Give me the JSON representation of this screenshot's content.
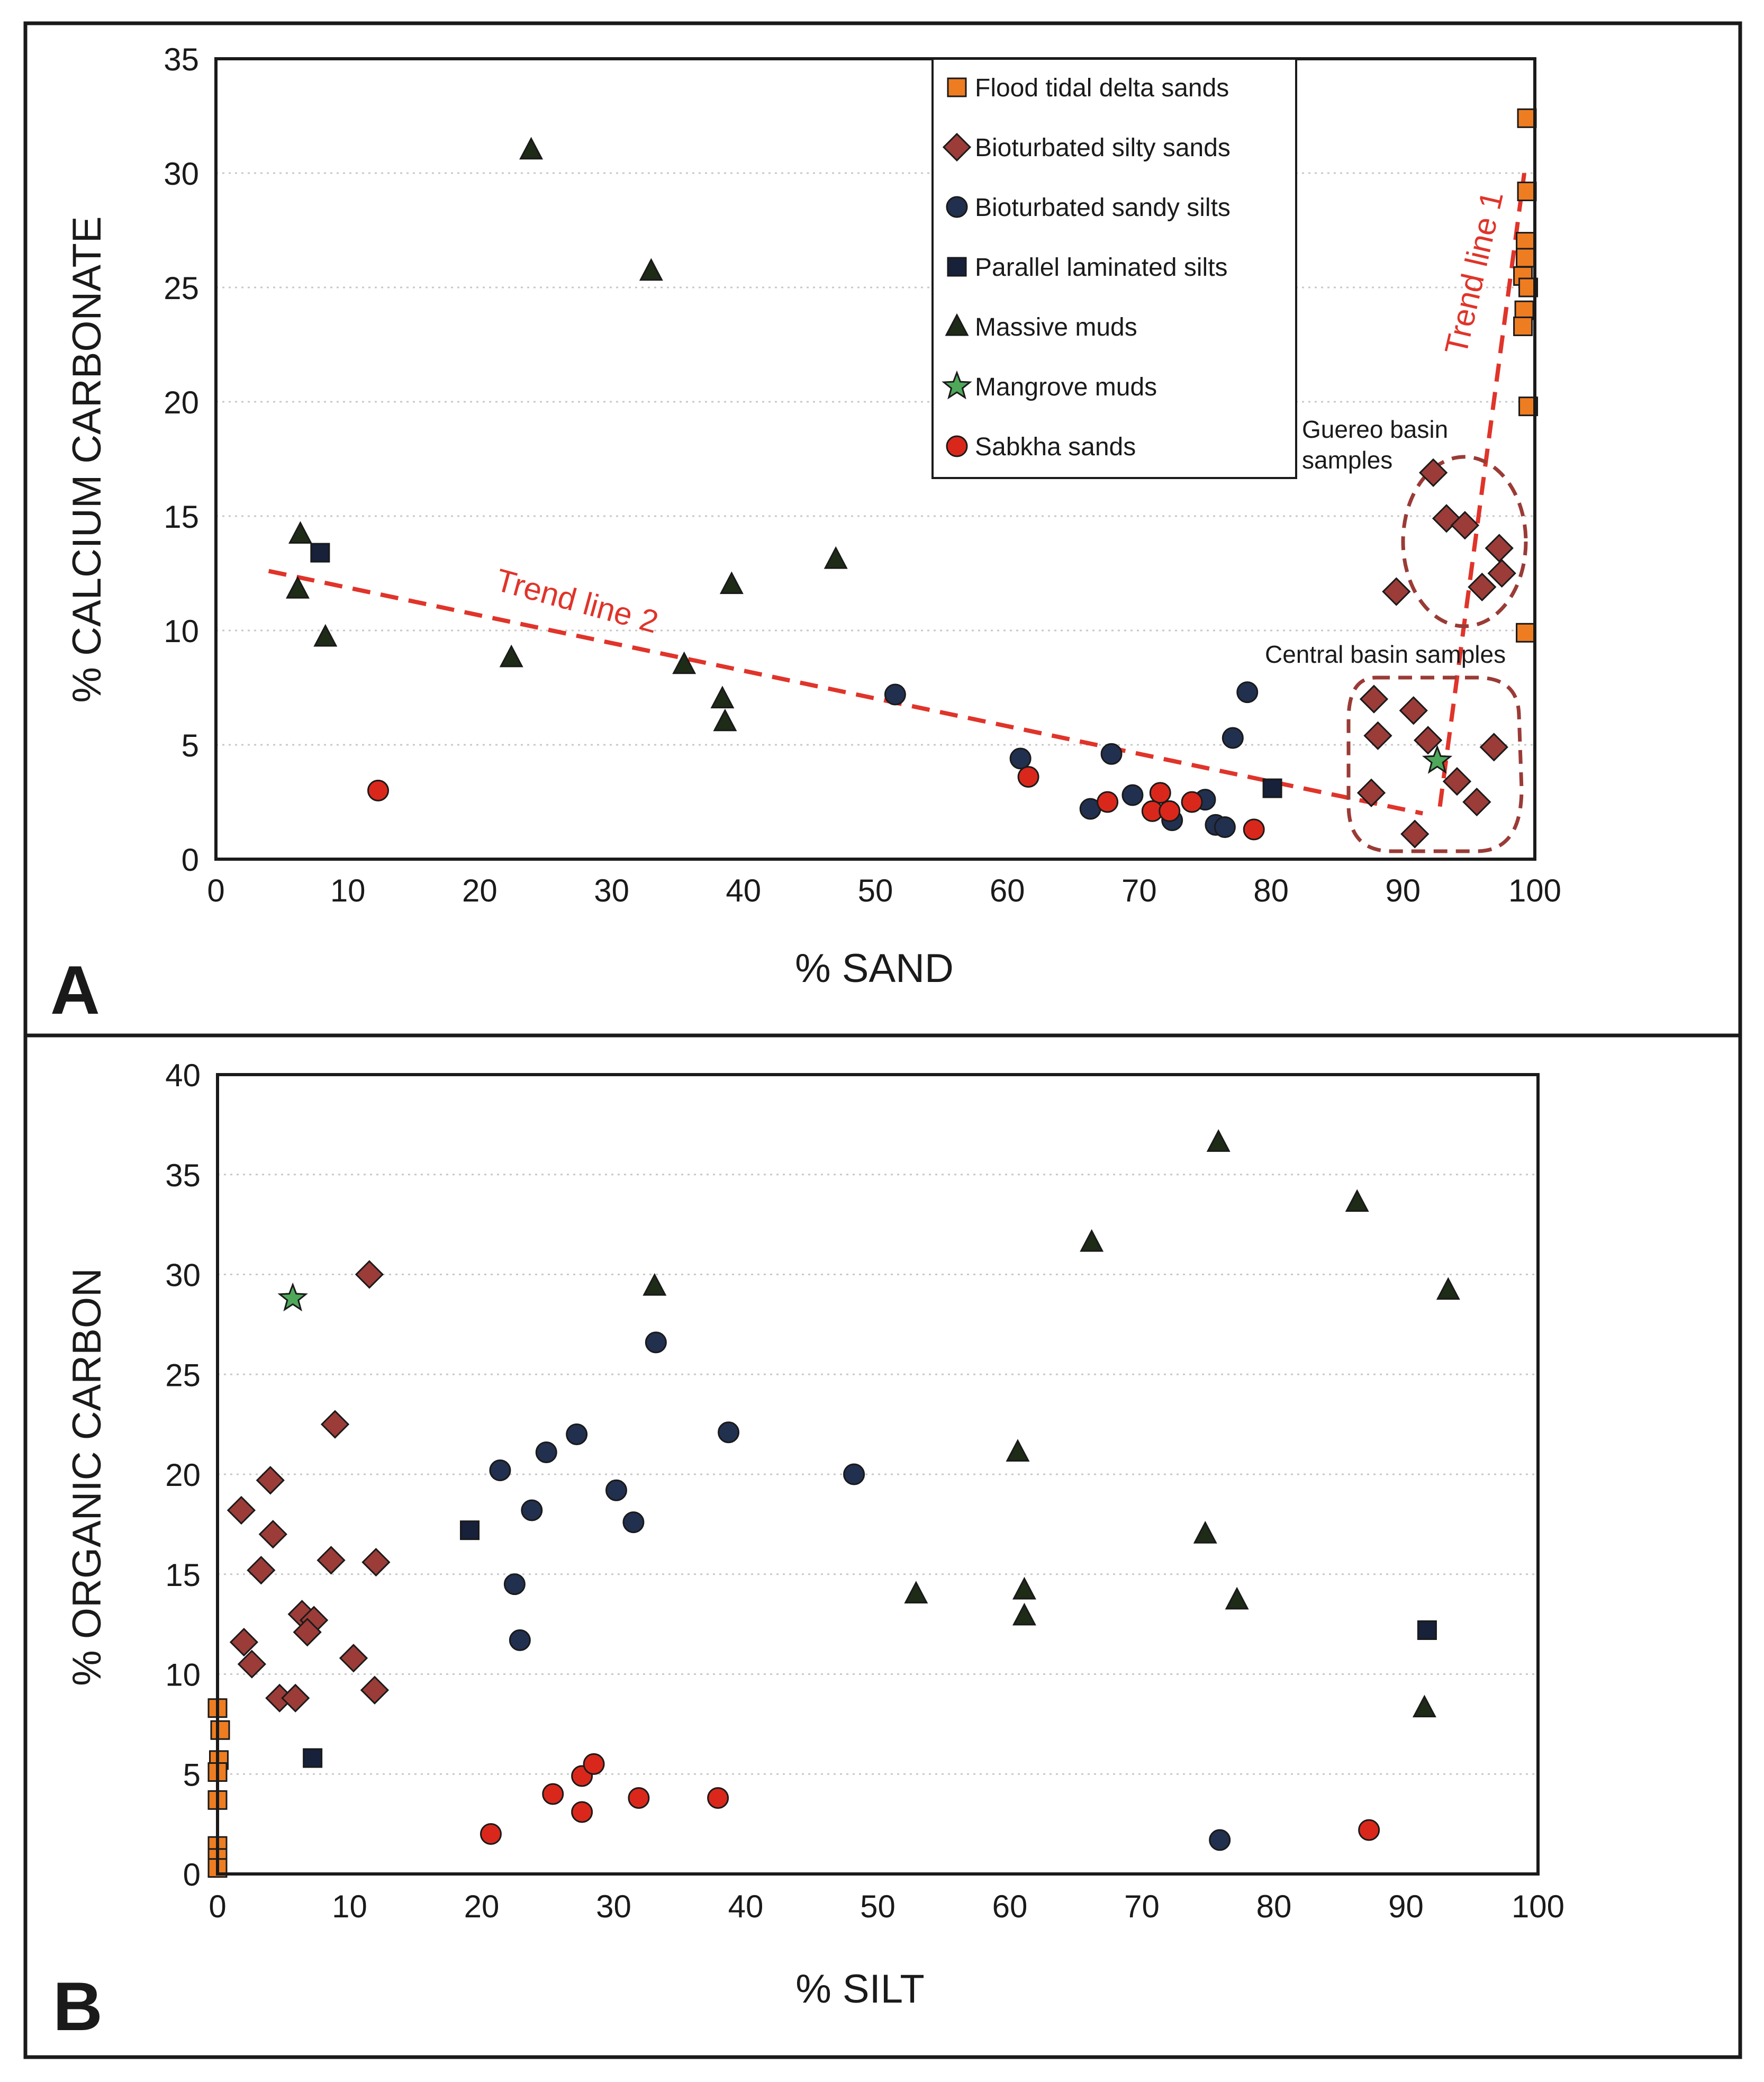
{
  "colors": {
    "flood": "#ee7d22",
    "bioturbated_silty": "#9b3c38",
    "bioturbated_sandy": "#22304f",
    "parallel": "#17213a",
    "massive": "#1e2b17",
    "mangrove": "#4fa85a",
    "sabkha": "#d9281b",
    "trend": "#e0342a",
    "group_outline": "#9a3b36",
    "grid": "#c8c8c8"
  },
  "legend": {
    "items": [
      {
        "key": "flood",
        "label": "Flood tidal delta sands",
        "marker": "square-icon"
      },
      {
        "key": "bioturbated_silty",
        "label": "Bioturbated silty sands",
        "marker": "diamond-icon"
      },
      {
        "key": "bioturbated_sandy",
        "label": "Bioturbated sandy silts",
        "marker": "circle-icon"
      },
      {
        "key": "parallel",
        "label": "Parallel laminated silts",
        "marker": "square-icon"
      },
      {
        "key": "massive",
        "label": "Massive muds",
        "marker": "triangle-icon"
      },
      {
        "key": "mangrove",
        "label": "Mangrove muds",
        "marker": "star-icon"
      },
      {
        "key": "sabkha",
        "label": "Sabkha sands",
        "marker": "circle-icon"
      }
    ]
  },
  "chart_data": [
    {
      "panel_label": "A",
      "type": "scatter",
      "title": "",
      "xlabel": "% SAND",
      "ylabel": "% CALCIUM CARBONATE",
      "xlim": [
        0,
        100
      ],
      "ylim": [
        0,
        35
      ],
      "x_ticks": [
        "0",
        "10",
        "20",
        "30",
        "40",
        "50",
        "60",
        "70",
        "80",
        "90",
        "100"
      ],
      "y_ticks": [
        "0",
        "5",
        "10",
        "15",
        "20",
        "25",
        "30",
        "35"
      ],
      "grid": true,
      "legend_position": "top-right",
      "series": [
        {
          "key": "flood",
          "name": "Flood tidal delta sands",
          "points": [
            [
              99.4,
              32.4
            ],
            [
              99.4,
              29.2
            ],
            [
              99.3,
              27.0
            ],
            [
              99.3,
              26.3
            ],
            [
              99.1,
              25.5
            ],
            [
              99.5,
              25.0
            ],
            [
              99.2,
              24.0
            ],
            [
              99.1,
              23.3
            ],
            [
              99.5,
              19.8
            ],
            [
              99.3,
              9.9
            ]
          ]
        },
        {
          "key": "bioturbated_silty",
          "name": "Bioturbated silty sands",
          "points": [
            [
              92.3,
              16.9
            ],
            [
              93.3,
              14.9
            ],
            [
              94.7,
              14.6
            ],
            [
              97.3,
              13.6
            ],
            [
              97.5,
              12.5
            ],
            [
              96.0,
              11.9
            ],
            [
              89.5,
              11.7
            ],
            [
              87.8,
              7.0
            ],
            [
              90.8,
              6.5
            ],
            [
              88.1,
              5.4
            ],
            [
              91.9,
              5.2
            ],
            [
              96.9,
              4.9
            ],
            [
              94.1,
              3.4
            ],
            [
              87.6,
              2.9
            ],
            [
              95.6,
              2.5
            ],
            [
              90.9,
              1.1
            ]
          ]
        },
        {
          "key": "bioturbated_sandy",
          "name": "Bioturbated sandy silts",
          "points": [
            [
              51.5,
              7.2
            ],
            [
              78.2,
              7.3
            ],
            [
              77.1,
              5.3
            ],
            [
              67.9,
              4.6
            ],
            [
              61.0,
              4.4
            ],
            [
              69.5,
              2.8
            ],
            [
              75.0,
              2.6
            ],
            [
              66.3,
              2.2
            ],
            [
              72.5,
              1.7
            ],
            [
              75.8,
              1.5
            ],
            [
              76.5,
              1.4
            ]
          ]
        },
        {
          "key": "parallel",
          "name": "Parallel laminated silts",
          "points": [
            [
              7.9,
              13.4
            ],
            [
              80.1,
              3.1
            ]
          ]
        },
        {
          "key": "massive",
          "name": "Massive muds",
          "points": [
            [
              23.9,
              31.0
            ],
            [
              33.0,
              25.7
            ],
            [
              6.4,
              14.2
            ],
            [
              6.2,
              11.8
            ],
            [
              8.3,
              9.7
            ],
            [
              47.0,
              13.1
            ],
            [
              39.1,
              12.0
            ],
            [
              22.4,
              8.8
            ],
            [
              35.5,
              8.5
            ],
            [
              38.4,
              7.0
            ],
            [
              38.6,
              6.0
            ]
          ]
        },
        {
          "key": "mangrove",
          "name": "Mangrove muds",
          "points": [
            [
              92.6,
              4.3
            ]
          ]
        },
        {
          "key": "sabkha",
          "name": "Sabkha sands",
          "points": [
            [
              12.3,
              3.0
            ],
            [
              61.6,
              3.6
            ],
            [
              71.6,
              2.9
            ],
            [
              67.6,
              2.5
            ],
            [
              74.0,
              2.5
            ],
            [
              71.0,
              2.1
            ],
            [
              72.3,
              2.1
            ],
            [
              78.7,
              1.3
            ]
          ]
        }
      ],
      "trend_lines": [
        {
          "label": "Trend line 1",
          "from": [
            92.8,
            2.3
          ],
          "to": [
            99.2,
            30.0
          ]
        },
        {
          "label": "Trend line 2",
          "from": [
            4.0,
            12.6
          ],
          "to": [
            91.5,
            2.0
          ]
        }
      ],
      "annotations": [
        "Guereo basin",
        "samples",
        "Central basin samples"
      ]
    },
    {
      "panel_label": "B",
      "type": "scatter",
      "title": "",
      "xlabel": "% SILT",
      "ylabel": "% ORGANIC CARBON",
      "xlim": [
        0,
        100
      ],
      "ylim": [
        0,
        40
      ],
      "x_ticks": [
        "0",
        "10",
        "20",
        "30",
        "40",
        "50",
        "60",
        "70",
        "80",
        "90",
        "100"
      ],
      "y_ticks": [
        "0",
        "5",
        "10",
        "15",
        "20",
        "25",
        "30",
        "35",
        "40"
      ],
      "grid": true,
      "series": [
        {
          "key": "flood",
          "name": "Flood tidal delta sands",
          "points": [
            [
              0.0,
              8.3
            ],
            [
              0.2,
              7.2
            ],
            [
              0.1,
              5.7
            ],
            [
              0.0,
              5.1
            ],
            [
              0.0,
              3.7
            ],
            [
              0.0,
              1.4
            ],
            [
              0.0,
              0.8
            ],
            [
              0.0,
              0.3
            ]
          ]
        },
        {
          "key": "bioturbated_silty",
          "name": "Bioturbated silty sands",
          "points": [
            [
              11.5,
              30.0
            ],
            [
              8.9,
              22.5
            ],
            [
              4.0,
              19.7
            ],
            [
              1.8,
              18.2
            ],
            [
              4.2,
              17.0
            ],
            [
              3.3,
              15.2
            ],
            [
              8.6,
              15.7
            ],
            [
              12.0,
              15.6
            ],
            [
              6.4,
              13.0
            ],
            [
              7.3,
              12.7
            ],
            [
              6.8,
              12.1
            ],
            [
              2.0,
              11.6
            ],
            [
              2.6,
              10.5
            ],
            [
              10.3,
              10.8
            ],
            [
              4.7,
              8.8
            ],
            [
              5.9,
              8.8
            ],
            [
              11.9,
              9.2
            ]
          ]
        },
        {
          "key": "bioturbated_sandy",
          "name": "Bioturbated sandy silts",
          "points": [
            [
              33.2,
              26.6
            ],
            [
              21.4,
              20.2
            ],
            [
              24.9,
              21.1
            ],
            [
              27.2,
              22.0
            ],
            [
              38.7,
              22.1
            ],
            [
              48.2,
              20.0
            ],
            [
              23.8,
              18.2
            ],
            [
              30.2,
              19.2
            ],
            [
              31.5,
              17.6
            ],
            [
              22.5,
              14.5
            ],
            [
              22.9,
              11.7
            ],
            [
              75.9,
              1.7
            ]
          ]
        },
        {
          "key": "parallel",
          "name": "Parallel laminated silts",
          "points": [
            [
              19.1,
              17.2
            ],
            [
              7.2,
              5.8
            ],
            [
              91.6,
              12.2
            ]
          ]
        },
        {
          "key": "massive",
          "name": "Massive muds",
          "points": [
            [
              75.8,
              36.6
            ],
            [
              86.3,
              33.6
            ],
            [
              66.2,
              31.6
            ],
            [
              93.2,
              29.2
            ],
            [
              33.1,
              29.4
            ],
            [
              60.6,
              21.1
            ],
            [
              74.8,
              17.0
            ],
            [
              52.9,
              14.0
            ],
            [
              61.1,
              14.2
            ],
            [
              61.1,
              12.9
            ],
            [
              77.2,
              13.7
            ],
            [
              91.4,
              8.3
            ]
          ]
        },
        {
          "key": "mangrove",
          "name": "Mangrove muds",
          "points": [
            [
              5.7,
              28.8
            ]
          ]
        },
        {
          "key": "sabkha",
          "name": "Sabkha sands",
          "points": [
            [
              20.7,
              2.0
            ],
            [
              25.4,
              4.0
            ],
            [
              27.6,
              4.9
            ],
            [
              28.5,
              5.5
            ],
            [
              27.6,
              3.1
            ],
            [
              31.9,
              3.8
            ],
            [
              37.9,
              3.8
            ],
            [
              87.2,
              2.2
            ]
          ]
        }
      ]
    }
  ]
}
